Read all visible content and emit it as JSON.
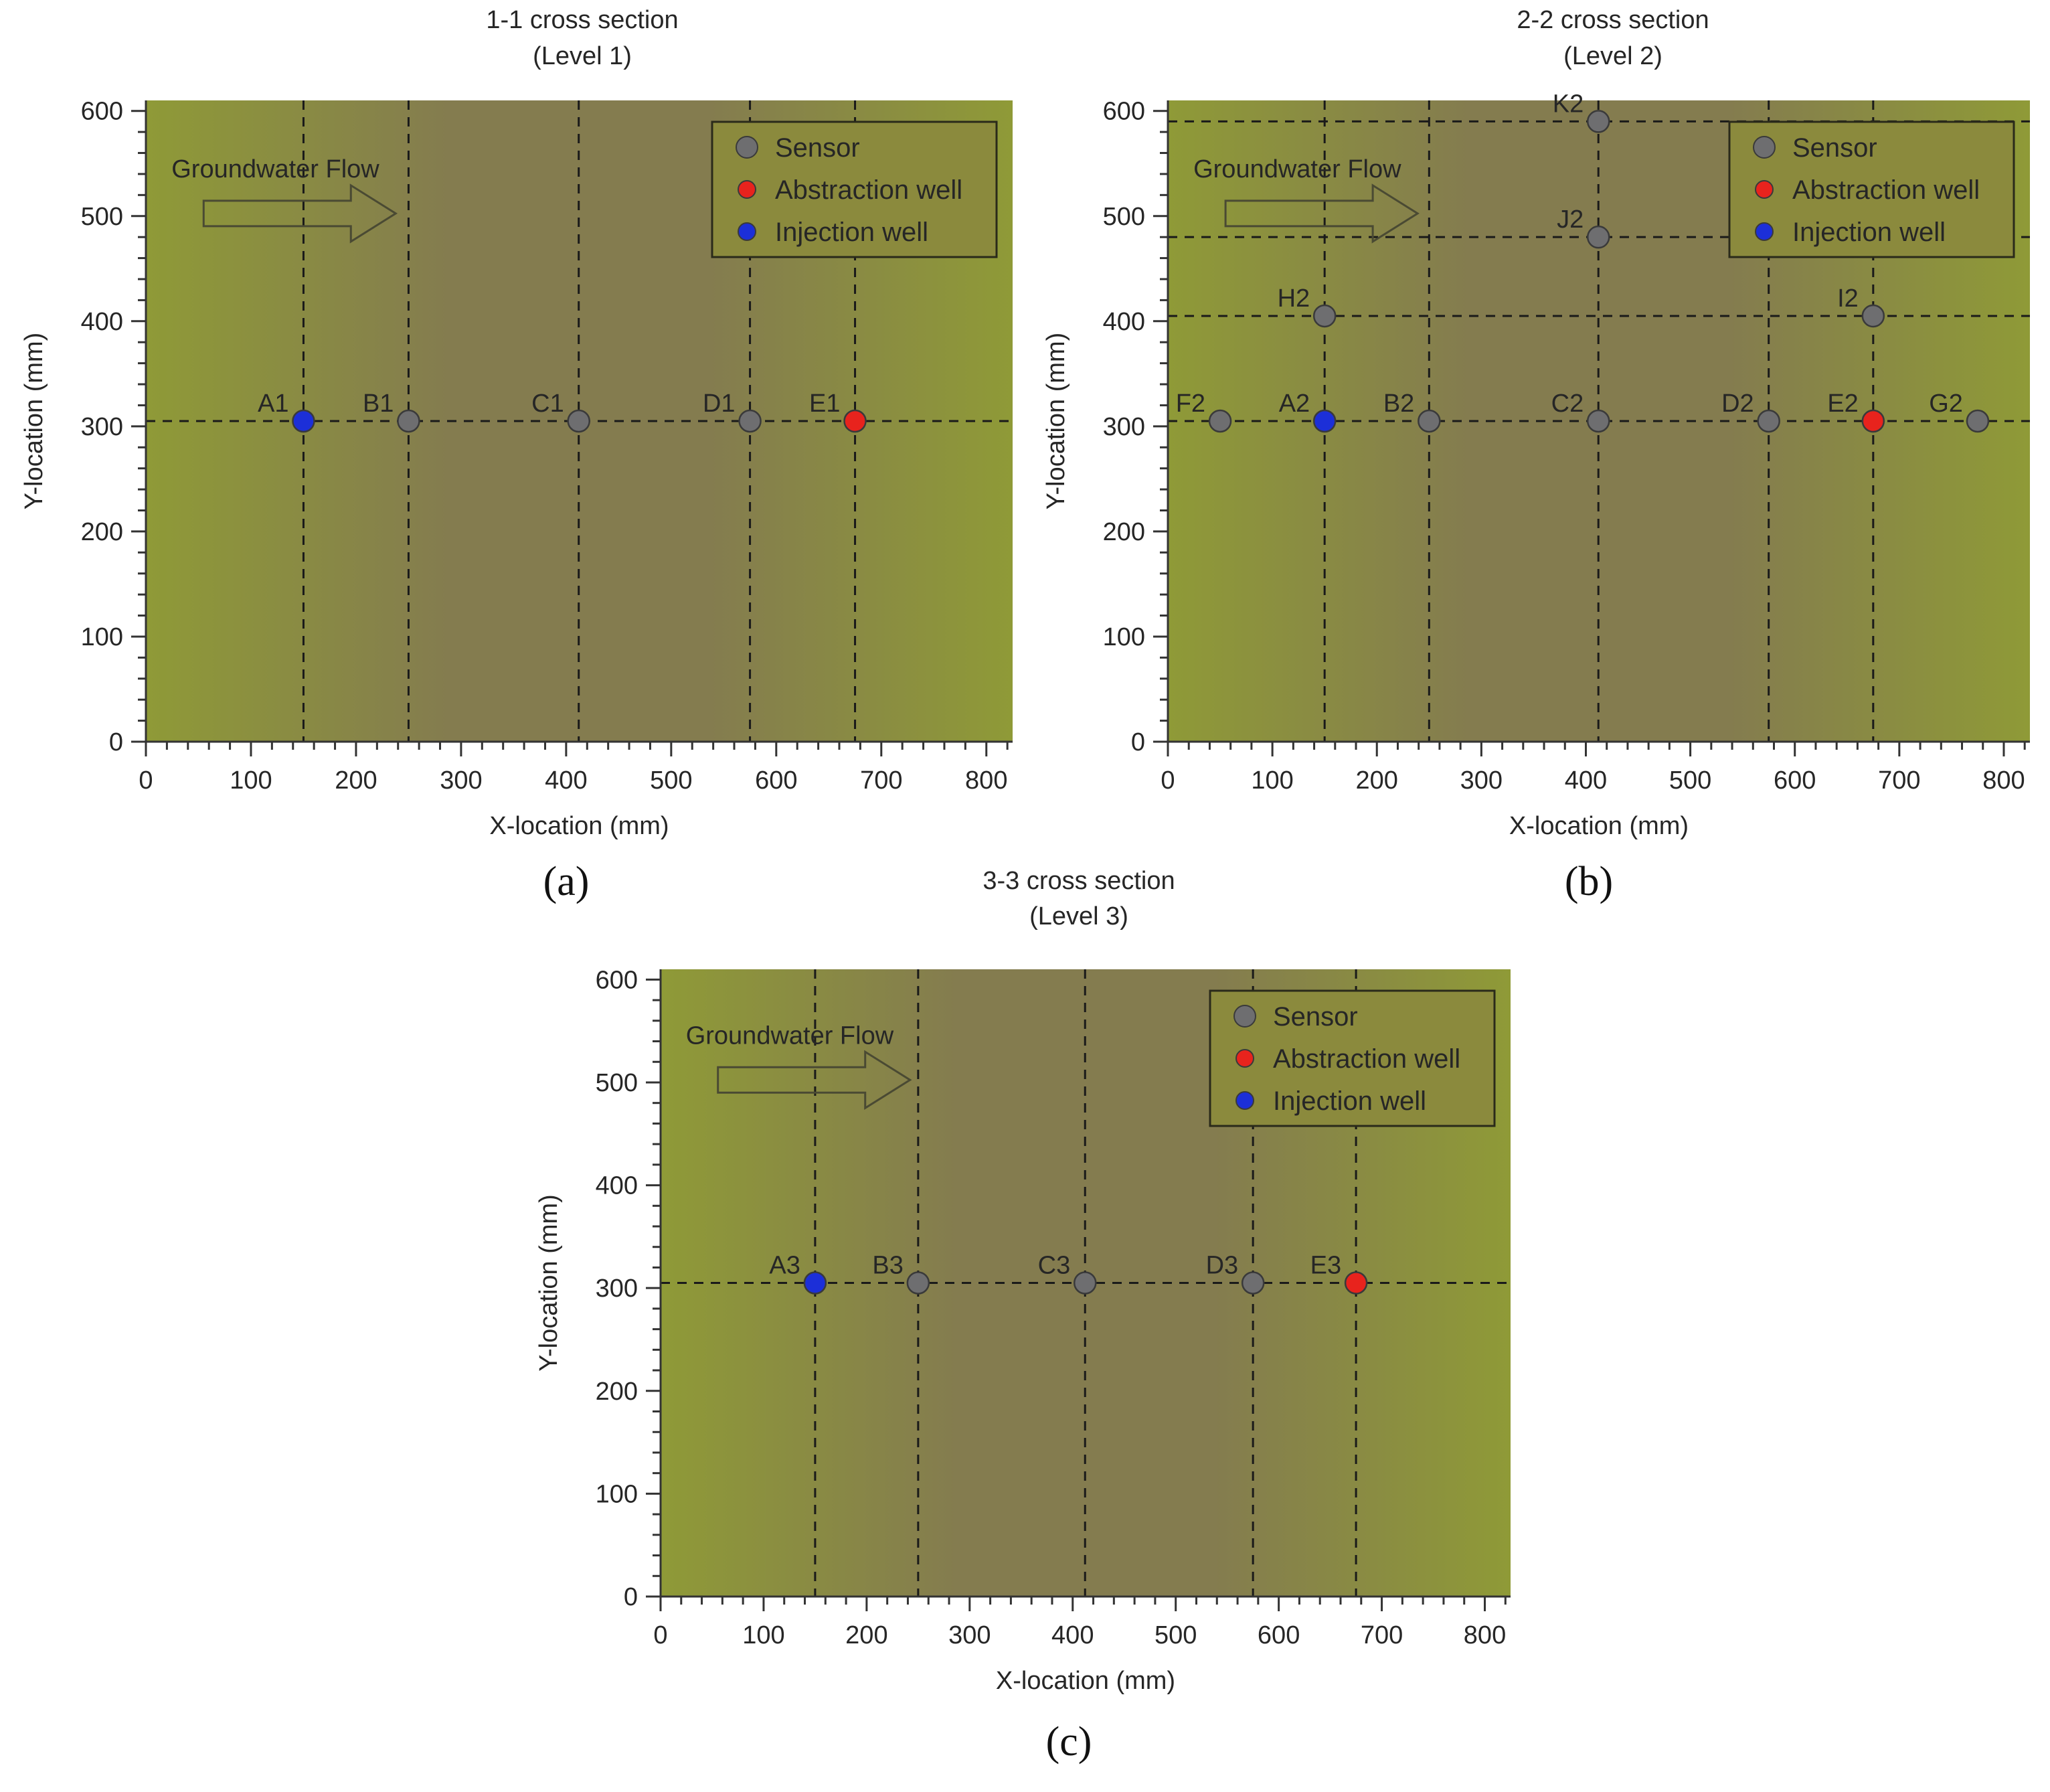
{
  "colors": {
    "plot_edge": "#8f9a37",
    "plot_center": "#847c4f",
    "sensor": "#6e6e70",
    "abstraction_well": "#e8231d",
    "injection_well": "#1c2fd8",
    "legend_fill": "#8b8a3d"
  },
  "icons": {
    "sensor": "gray-circle-icon",
    "abstraction_well": "red-circle-icon",
    "injection_well": "blue-circle-icon",
    "flow": "right-arrow-icon"
  },
  "chart_data": [
    {
      "id": "a",
      "type": "scatter",
      "caption": "(a)",
      "title_line1": "1-1 cross section",
      "title_line2": "(Level 1)",
      "xlabel": "X-location (mm)",
      "ylabel": "Y-location (mm)",
      "xlim": [
        0,
        825
      ],
      "ylim": [
        0,
        610
      ],
      "xticks": [
        0,
        100,
        200,
        300,
        400,
        500,
        600,
        700,
        800
      ],
      "yticks": [
        0,
        100,
        200,
        300,
        400,
        500,
        600
      ],
      "legend_position": "top-right",
      "legend": [
        {
          "kind": "sensor",
          "label": "Sensor"
        },
        {
          "kind": "abstraction",
          "label": "Abstraction well"
        },
        {
          "kind": "injection",
          "label": "Injection well"
        }
      ],
      "flow_label": "Groundwater Flow",
      "vlines": [
        150,
        250,
        412,
        575,
        675
      ],
      "hlines": [
        305
      ],
      "points": [
        {
          "label": "A1",
          "x": 150,
          "y": 305,
          "kind": "injection"
        },
        {
          "label": "B1",
          "x": 250,
          "y": 305,
          "kind": "sensor"
        },
        {
          "label": "C1",
          "x": 412,
          "y": 305,
          "kind": "sensor"
        },
        {
          "label": "D1",
          "x": 575,
          "y": 305,
          "kind": "sensor"
        },
        {
          "label": "E1",
          "x": 675,
          "y": 305,
          "kind": "abstraction"
        }
      ]
    },
    {
      "id": "b",
      "type": "scatter",
      "caption": "(b)",
      "title_line1": "2-2 cross section",
      "title_line2": "(Level 2)",
      "xlabel": "X-location (mm)",
      "ylabel": "Y-location (mm)",
      "xlim": [
        0,
        825
      ],
      "ylim": [
        0,
        610
      ],
      "xticks": [
        0,
        100,
        200,
        300,
        400,
        500,
        600,
        700,
        800
      ],
      "yticks": [
        0,
        100,
        200,
        300,
        400,
        500,
        600
      ],
      "legend_position": "top-right",
      "legend": [
        {
          "kind": "sensor",
          "label": "Sensor"
        },
        {
          "kind": "abstraction",
          "label": "Abstraction well"
        },
        {
          "kind": "injection",
          "label": "Injection well"
        }
      ],
      "flow_label": "Groundwater Flow",
      "vlines": [
        150,
        250,
        412,
        575,
        675
      ],
      "hlines": [
        305,
        405,
        480,
        590
      ],
      "points": [
        {
          "label": "F2",
          "x": 50,
          "y": 305,
          "kind": "sensor"
        },
        {
          "label": "A2",
          "x": 150,
          "y": 305,
          "kind": "injection"
        },
        {
          "label": "B2",
          "x": 250,
          "y": 305,
          "kind": "sensor"
        },
        {
          "label": "C2",
          "x": 412,
          "y": 305,
          "kind": "sensor"
        },
        {
          "label": "D2",
          "x": 575,
          "y": 305,
          "kind": "sensor"
        },
        {
          "label": "E2",
          "x": 675,
          "y": 305,
          "kind": "abstraction"
        },
        {
          "label": "G2",
          "x": 775,
          "y": 305,
          "kind": "sensor"
        },
        {
          "label": "H2",
          "x": 150,
          "y": 405,
          "kind": "sensor"
        },
        {
          "label": "I2",
          "x": 675,
          "y": 405,
          "kind": "sensor"
        },
        {
          "label": "J2",
          "x": 412,
          "y": 480,
          "kind": "sensor"
        },
        {
          "label": "K2",
          "x": 412,
          "y": 590,
          "kind": "sensor"
        }
      ]
    },
    {
      "id": "c",
      "type": "scatter",
      "caption": "(c)",
      "title_line1": "3-3 cross section",
      "title_line2": "(Level 3)",
      "xlabel": "X-location (mm)",
      "ylabel": "Y-location (mm)",
      "xlim": [
        0,
        825
      ],
      "ylim": [
        0,
        610
      ],
      "xticks": [
        0,
        100,
        200,
        300,
        400,
        500,
        600,
        700,
        800
      ],
      "yticks": [
        0,
        100,
        200,
        300,
        400,
        500,
        600
      ],
      "legend_position": "top-right",
      "legend": [
        {
          "kind": "sensor",
          "label": "Sensor"
        },
        {
          "kind": "abstraction",
          "label": "Abstraction well"
        },
        {
          "kind": "injection",
          "label": "Injection well"
        }
      ],
      "flow_label": "Groundwater Flow",
      "vlines": [
        150,
        250,
        412,
        575,
        675
      ],
      "hlines": [
        305
      ],
      "points": [
        {
          "label": "A3",
          "x": 150,
          "y": 305,
          "kind": "injection"
        },
        {
          "label": "B3",
          "x": 250,
          "y": 305,
          "kind": "sensor"
        },
        {
          "label": "C3",
          "x": 412,
          "y": 305,
          "kind": "sensor"
        },
        {
          "label": "D3",
          "x": 575,
          "y": 305,
          "kind": "sensor"
        },
        {
          "label": "E3",
          "x": 675,
          "y": 305,
          "kind": "abstraction"
        }
      ]
    }
  ]
}
